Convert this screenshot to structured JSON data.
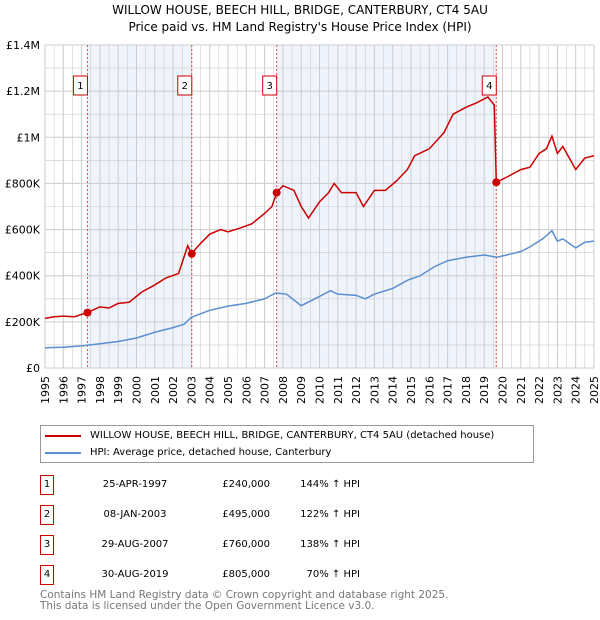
{
  "chart_data": {
    "type": "line",
    "title": "WILLOW HOUSE, BEECH HILL, BRIDGE, CANTERBURY, CT4 5AU",
    "subtitle": "Price paid vs. HM Land Registry's House Price Index (HPI)",
    "xlim": [
      1995,
      2025
    ],
    "ylim": [
      0,
      1400000
    ],
    "x_ticks": [
      "1995",
      "1996",
      "1997",
      "1998",
      "1999",
      "2000",
      "2001",
      "2002",
      "2003",
      "2004",
      "2005",
      "2006",
      "2007",
      "2008",
      "2009",
      "2010",
      "2011",
      "2012",
      "2013",
      "2014",
      "2015",
      "2016",
      "2017",
      "2018",
      "2019",
      "2020",
      "2021",
      "2022",
      "2023",
      "2024",
      "2025"
    ],
    "y_ticks": [
      {
        "v": 0,
        "label": "£0"
      },
      {
        "v": 200000,
        "label": "£200K"
      },
      {
        "v": 400000,
        "label": "£400K"
      },
      {
        "v": 600000,
        "label": "£600K"
      },
      {
        "v": 800000,
        "label": "£800K"
      },
      {
        "v": 1000000,
        "label": "£1M"
      },
      {
        "v": 1200000,
        "label": "£1.2M"
      },
      {
        "v": 1400000,
        "label": "£1.4M"
      }
    ],
    "grid": true,
    "series": [
      {
        "name": "WILLOW HOUSE, BEECH HILL, BRIDGE, CANTERBURY, CT4 5AU (detached house)",
        "color": "#cc0000",
        "points": [
          [
            1995,
            215000
          ],
          [
            1995.5,
            222000
          ],
          [
            1996,
            225000
          ],
          [
            1996.6,
            222000
          ],
          [
            1997.3,
            240000
          ],
          [
            1998,
            265000
          ],
          [
            1998.5,
            260000
          ],
          [
            1999,
            280000
          ],
          [
            1999.6,
            285000
          ],
          [
            2000.3,
            330000
          ],
          [
            2001,
            360000
          ],
          [
            2001.6,
            390000
          ],
          [
            2002.3,
            410000
          ],
          [
            2002.8,
            530000
          ],
          [
            2003.0,
            495000
          ],
          [
            2003.5,
            540000
          ],
          [
            2004,
            580000
          ],
          [
            2004.6,
            600000
          ],
          [
            2005,
            590000
          ],
          [
            2005.6,
            605000
          ],
          [
            2006.3,
            625000
          ],
          [
            2007,
            670000
          ],
          [
            2007.4,
            700000
          ],
          [
            2007.66,
            760000
          ],
          [
            2008,
            790000
          ],
          [
            2008.6,
            770000
          ],
          [
            2009,
            700000
          ],
          [
            2009.4,
            650000
          ],
          [
            2010,
            720000
          ],
          [
            2010.5,
            760000
          ],
          [
            2010.8,
            800000
          ],
          [
            2011.2,
            760000
          ],
          [
            2012,
            760000
          ],
          [
            2012.4,
            700000
          ],
          [
            2013,
            770000
          ],
          [
            2013.6,
            770000
          ],
          [
            2014.2,
            810000
          ],
          [
            2014.8,
            860000
          ],
          [
            2015.2,
            920000
          ],
          [
            2016,
            950000
          ],
          [
            2016.8,
            1020000
          ],
          [
            2017.3,
            1100000
          ],
          [
            2018,
            1130000
          ],
          [
            2018.6,
            1150000
          ],
          [
            2019.2,
            1175000
          ],
          [
            2019.55,
            1140000
          ],
          [
            2019.66,
            805000
          ],
          [
            2020.3,
            830000
          ],
          [
            2021,
            860000
          ],
          [
            2021.5,
            870000
          ],
          [
            2022,
            930000
          ],
          [
            2022.4,
            950000
          ],
          [
            2022.7,
            1005000
          ],
          [
            2023,
            930000
          ],
          [
            2023.3,
            960000
          ],
          [
            2024,
            860000
          ],
          [
            2024.5,
            910000
          ],
          [
            2025,
            920000
          ]
        ]
      },
      {
        "name": "HPI: Average price, detached house, Canterbury",
        "color": "#5b8fd0",
        "points": [
          [
            1995,
            88000
          ],
          [
            1996,
            90000
          ],
          [
            1997,
            96000
          ],
          [
            1998,
            105000
          ],
          [
            1999,
            115000
          ],
          [
            2000,
            130000
          ],
          [
            2001,
            155000
          ],
          [
            2002,
            175000
          ],
          [
            2002.6,
            190000
          ],
          [
            2003,
            220000
          ],
          [
            2004,
            250000
          ],
          [
            2005,
            268000
          ],
          [
            2006,
            280000
          ],
          [
            2007,
            300000
          ],
          [
            2007.6,
            325000
          ],
          [
            2008.2,
            320000
          ],
          [
            2009,
            270000
          ],
          [
            2009.5,
            290000
          ],
          [
            2010,
            310000
          ],
          [
            2010.6,
            335000
          ],
          [
            2011,
            320000
          ],
          [
            2012,
            315000
          ],
          [
            2012.5,
            300000
          ],
          [
            2013,
            320000
          ],
          [
            2014,
            345000
          ],
          [
            2014.8,
            380000
          ],
          [
            2015.5,
            400000
          ],
          [
            2016.3,
            440000
          ],
          [
            2017,
            465000
          ],
          [
            2018,
            480000
          ],
          [
            2019,
            490000
          ],
          [
            2019.7,
            480000
          ],
          [
            2020.5,
            495000
          ],
          [
            2021,
            505000
          ],
          [
            2021.5,
            525000
          ],
          [
            2022.2,
            560000
          ],
          [
            2022.7,
            595000
          ],
          [
            2023,
            550000
          ],
          [
            2023.3,
            560000
          ],
          [
            2024,
            520000
          ],
          [
            2024.5,
            545000
          ],
          [
            2025,
            550000
          ]
        ]
      }
    ],
    "sales": [
      {
        "id": "1",
        "x": 1997.32,
        "price": 240000,
        "date": "25-APR-1997",
        "price_label": "£240,000",
        "hpi": "144% ↑ HPI"
      },
      {
        "id": "2",
        "x": 2003.02,
        "price": 495000,
        "date": "08-JAN-2003",
        "price_label": "£495,000",
        "hpi": "122% ↑ HPI"
      },
      {
        "id": "3",
        "x": 2007.66,
        "price": 760000,
        "date": "29-AUG-2007",
        "price_label": "£760,000",
        "hpi": "138% ↑ HPI"
      },
      {
        "id": "4",
        "x": 2019.66,
        "price": 805000,
        "date": "30-AUG-2019",
        "price_label": "£805,000",
        "hpi": "70% ↑ HPI"
      }
    ],
    "legend_placement": "below"
  },
  "footer": {
    "line1": "Contains HM Land Registry data © Crown copyright and database right 2025.",
    "line2": "This data is licensed under the Open Government Licence v3.0."
  }
}
